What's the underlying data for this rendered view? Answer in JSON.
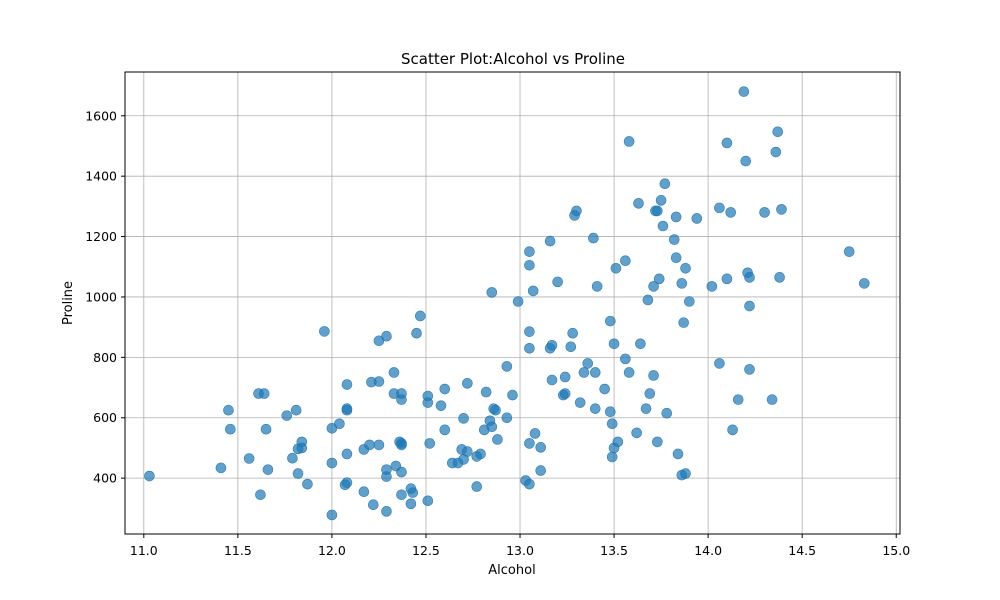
{
  "chart_data": {
    "type": "scatter",
    "title": "Scatter Plot:Alcohol vs Proline",
    "xlabel": "Alcohol",
    "ylabel": "Proline",
    "xlim": [
      10.9,
      15.02
    ],
    "ylim": [
      215,
      1745
    ],
    "xticks": [
      11.0,
      11.5,
      12.0,
      12.5,
      13.0,
      13.5,
      14.0,
      14.5,
      15.0
    ],
    "yticks": [
      400,
      600,
      800,
      1000,
      1200,
      1400,
      1600
    ],
    "grid": true,
    "color": "#1f77b4",
    "points": [
      [
        11.03,
        407
      ],
      [
        11.41,
        434
      ],
      [
        11.45,
        625
      ],
      [
        11.46,
        562
      ],
      [
        11.56,
        465
      ],
      [
        11.61,
        680
      ],
      [
        11.62,
        345
      ],
      [
        11.64,
        680
      ],
      [
        11.65,
        562
      ],
      [
        11.66,
        428
      ],
      [
        11.76,
        607
      ],
      [
        11.79,
        466
      ],
      [
        11.81,
        625
      ],
      [
        11.82,
        415
      ],
      [
        11.82,
        497
      ],
      [
        11.84,
        520
      ],
      [
        11.84,
        500
      ],
      [
        11.87,
        380
      ],
      [
        11.96,
        886
      ],
      [
        12.0,
        278
      ],
      [
        12.0,
        565
      ],
      [
        12.0,
        450
      ],
      [
        12.04,
        580
      ],
      [
        12.07,
        378
      ],
      [
        12.08,
        710
      ],
      [
        12.08,
        630
      ],
      [
        12.08,
        625
      ],
      [
        12.08,
        385
      ],
      [
        12.08,
        480
      ],
      [
        12.17,
        355
      ],
      [
        12.17,
        495
      ],
      [
        12.2,
        510
      ],
      [
        12.21,
        718
      ],
      [
        12.22,
        312
      ],
      [
        12.25,
        855
      ],
      [
        12.25,
        720
      ],
      [
        12.25,
        510
      ],
      [
        12.29,
        870
      ],
      [
        12.29,
        428
      ],
      [
        12.29,
        405
      ],
      [
        12.29,
        290
      ],
      [
        12.33,
        680
      ],
      [
        12.33,
        750
      ],
      [
        12.34,
        440
      ],
      [
        12.36,
        520
      ],
      [
        12.37,
        515
      ],
      [
        12.37,
        510
      ],
      [
        12.37,
        660
      ],
      [
        12.37,
        680
      ],
      [
        12.37,
        345
      ],
      [
        12.37,
        420
      ],
      [
        12.42,
        365
      ],
      [
        12.42,
        315
      ],
      [
        12.43,
        352
      ],
      [
        12.45,
        880
      ],
      [
        12.47,
        937
      ],
      [
        12.51,
        672
      ],
      [
        12.51,
        650
      ],
      [
        12.51,
        325
      ],
      [
        12.52,
        515
      ],
      [
        12.58,
        640
      ],
      [
        12.6,
        695
      ],
      [
        12.6,
        560
      ],
      [
        12.64,
        450
      ],
      [
        12.67,
        450
      ],
      [
        12.69,
        495
      ],
      [
        12.7,
        598
      ],
      [
        12.7,
        462
      ],
      [
        12.72,
        714
      ],
      [
        12.72,
        488
      ],
      [
        12.77,
        472
      ],
      [
        12.77,
        372
      ],
      [
        12.79,
        480
      ],
      [
        12.81,
        560
      ],
      [
        12.82,
        685
      ],
      [
        12.84,
        590
      ],
      [
        12.85,
        1015
      ],
      [
        12.85,
        570
      ],
      [
        12.86,
        630
      ],
      [
        12.87,
        625
      ],
      [
        12.88,
        528
      ],
      [
        12.93,
        770
      ],
      [
        12.93,
        600
      ],
      [
        12.96,
        675
      ],
      [
        12.99,
        985
      ],
      [
        13.03,
        392
      ],
      [
        13.05,
        1150
      ],
      [
        13.05,
        1105
      ],
      [
        13.05,
        885
      ],
      [
        13.05,
        830
      ],
      [
        13.05,
        515
      ],
      [
        13.05,
        380
      ],
      [
        13.07,
        1020
      ],
      [
        13.08,
        548
      ],
      [
        13.11,
        502
      ],
      [
        13.11,
        425
      ],
      [
        13.16,
        1185
      ],
      [
        13.16,
        830
      ],
      [
        13.17,
        840
      ],
      [
        13.17,
        725
      ],
      [
        13.2,
        1050
      ],
      [
        13.23,
        675
      ],
      [
        13.24,
        680
      ],
      [
        13.24,
        735
      ],
      [
        13.27,
        835
      ],
      [
        13.28,
        880
      ],
      [
        13.29,
        1270
      ],
      [
        13.3,
        1285
      ],
      [
        13.32,
        650
      ],
      [
        13.34,
        750
      ],
      [
        13.36,
        780
      ],
      [
        13.39,
        1195
      ],
      [
        13.4,
        750
      ],
      [
        13.4,
        630
      ],
      [
        13.41,
        1035
      ],
      [
        13.45,
        695
      ],
      [
        13.48,
        920
      ],
      [
        13.48,
        620
      ],
      [
        13.49,
        580
      ],
      [
        13.49,
        470
      ],
      [
        13.5,
        845
      ],
      [
        13.5,
        500
      ],
      [
        13.51,
        1095
      ],
      [
        13.52,
        520
      ],
      [
        13.56,
        1120
      ],
      [
        13.56,
        795
      ],
      [
        13.58,
        1515
      ],
      [
        13.58,
        750
      ],
      [
        13.62,
        550
      ],
      [
        13.63,
        1310
      ],
      [
        13.64,
        845
      ],
      [
        13.67,
        630
      ],
      [
        13.68,
        990
      ],
      [
        13.69,
        680
      ],
      [
        13.71,
        740
      ],
      [
        13.71,
        1035
      ],
      [
        13.72,
        1285
      ],
      [
        13.73,
        1285
      ],
      [
        13.73,
        520
      ],
      [
        13.74,
        1060
      ],
      [
        13.75,
        1320
      ],
      [
        13.76,
        1235
      ],
      [
        13.77,
        1375
      ],
      [
        13.78,
        615
      ],
      [
        13.82,
        1190
      ],
      [
        13.83,
        1265
      ],
      [
        13.83,
        1130
      ],
      [
        13.84,
        480
      ],
      [
        13.86,
        1045
      ],
      [
        13.86,
        410
      ],
      [
        13.87,
        915
      ],
      [
        13.88,
        1095
      ],
      [
        13.88,
        415
      ],
      [
        13.9,
        985
      ],
      [
        13.94,
        1260
      ],
      [
        14.02,
        1035
      ],
      [
        14.06,
        1295
      ],
      [
        14.06,
        780
      ],
      [
        14.1,
        1510
      ],
      [
        14.1,
        1060
      ],
      [
        14.12,
        1280
      ],
      [
        14.13,
        560
      ],
      [
        14.16,
        660
      ],
      [
        14.19,
        1680
      ],
      [
        14.2,
        1450
      ],
      [
        14.21,
        1080
      ],
      [
        14.22,
        1065
      ],
      [
        14.22,
        970
      ],
      [
        14.22,
        760
      ],
      [
        14.3,
        1280
      ],
      [
        14.34,
        660
      ],
      [
        14.36,
        1480
      ],
      [
        14.37,
        1547
      ],
      [
        14.38,
        1065
      ],
      [
        14.39,
        1290
      ],
      [
        14.75,
        1150
      ],
      [
        14.83,
        1045
      ]
    ]
  }
}
